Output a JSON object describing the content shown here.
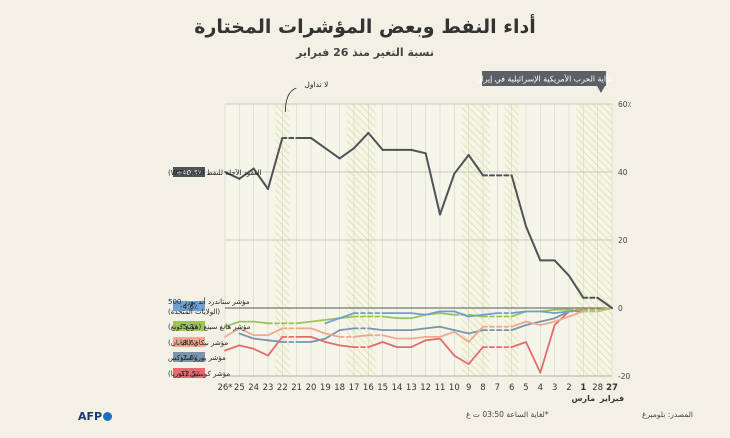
{
  "title": "أداء النفط وبعض المؤشرات المختارة",
  "subtitle": "نسبة التغير منذ 26 فبراير",
  "source": "المصدر: بلومبرغ",
  "footnote": "*لغاية الساعة 03:50 ت غ",
  "logo": "AFP",
  "colors": {
    "oil": "#4f5358",
    "sp500": "#6fa0d2",
    "hangseng": "#9dc45a",
    "nikkei": "#f0a990",
    "eurostoxx": "#7a95ad",
    "kospi": "#e56b6e",
    "hatch": "#e3e6c6"
  },
  "chart_data": {
    "type": "line",
    "title": "أداء النفط وبعض المؤشرات المختارة",
    "subtitle": "نسبة التغير منذ 26 فبراير",
    "x_tick_labels": [
      "26*",
      "25",
      "24",
      "23",
      "22",
      "21",
      "20",
      "19",
      "18",
      "17",
      "16",
      "15",
      "14",
      "13",
      "12",
      "11",
      "10",
      "9",
      "8",
      "7",
      "6",
      "5",
      "4",
      "3",
      "2",
      "1",
      "28",
      "27"
    ],
    "x_month_labels": [
      {
        "index": 25,
        "label": "مارس"
      },
      {
        "index": 27,
        "label": "فبراير"
      }
    ],
    "bold_ticks": [
      25,
      27
    ],
    "ylim": [
      -20,
      60
    ],
    "y_ticks": [
      {
        "value": 60,
        "label": "60٪"
      },
      {
        "value": 40,
        "label": "40"
      },
      {
        "value": 20,
        "label": "20"
      },
      {
        "value": 0,
        "label": "0"
      },
      {
        "value": -20,
        "label": "-20"
      }
    ],
    "grid": true,
    "hatched_days": [
      4,
      9,
      10,
      17,
      18,
      20,
      25,
      26,
      27
    ],
    "annotations": [
      {
        "label": "بداية الحرب الأمريكية الإسرائيلية في إيران",
        "x_index": 27
      },
      {
        "label": "لا تداول",
        "x_index": 4
      }
    ],
    "series": [
      {
        "key": "oil",
        "name": "العقود الآجلة للنفط الخام (WTI)",
        "badge": "+40.5٪",
        "values": [
          40,
          38,
          41,
          35,
          50,
          50,
          50,
          47,
          44,
          47,
          51.5,
          46.5,
          46.5,
          46.5,
          45.5,
          27.5,
          39.5,
          45,
          39,
          39,
          39,
          24,
          14,
          14,
          9.5,
          3,
          3,
          0
        ]
      },
      {
        "key": "sp500",
        "name": "مؤشر ستاندرد أند بورز 500 (الولايات المتحدة)",
        "badge": "-4.6٪",
        "values": [
          null,
          null,
          null,
          null,
          null,
          null,
          null,
          -4.5,
          -3,
          -1.5,
          -1.5,
          -1.5,
          -1.5,
          -1.5,
          -2,
          -1,
          -1,
          -2.5,
          -2,
          -1.5,
          -1.5,
          -1,
          -1,
          -1.5,
          -1,
          null,
          null,
          0
        ]
      },
      {
        "key": "hangseng",
        "name": "مؤشر هانغ سينغ (هونغ كونغ)",
        "badge": "-5.3٪",
        "values": [
          -5.5,
          -4,
          -4,
          -4.5,
          -4.5,
          -4.5,
          -4,
          -3.5,
          -3,
          -2.5,
          -2.5,
          -2.5,
          -3,
          -3,
          -2,
          -1.5,
          -2,
          -2,
          -2.5,
          -2.5,
          -2.5,
          -1,
          -1,
          -0.5,
          -0.5,
          -0.5,
          -0.5,
          0
        ]
      },
      {
        "key": "nikkei",
        "name": "مؤشر نيكاي (اليابان)",
        "badge": "-8.6٪",
        "values": [
          -8.5,
          -6,
          -8,
          -8,
          -6,
          -6,
          -6,
          -7.5,
          -8.5,
          -8.5,
          -8,
          -8,
          -9,
          -9,
          -8.5,
          -8.5,
          -7,
          -10,
          -5.5,
          -5.5,
          -5.5,
          -4,
          -5,
          -4,
          -2.5,
          -1,
          -1,
          0
        ]
      },
      {
        "key": "eurostoxx",
        "name": "مؤشر يورو ستوكس",
        "badge": "-7.6٪",
        "values": [
          null,
          -7.5,
          -9,
          -9.5,
          -10,
          -10,
          -10,
          -9,
          -6.5,
          -6,
          -6,
          -6.5,
          -6.5,
          -6.5,
          -6,
          -5.5,
          -6.5,
          -7.5,
          -6.5,
          -6.5,
          -6.5,
          -5,
          -4,
          -3,
          -1,
          -1,
          -1,
          0
        ]
      },
      {
        "key": "kospi",
        "name": "مؤشر كوسبي (كوريا)",
        "badge": "-12.5٪",
        "values": [
          -12.5,
          -11,
          -12,
          -14,
          -8.5,
          -8.5,
          -8.5,
          -10,
          -11,
          -11.5,
          -11.5,
          -10,
          -11.5,
          -11.5,
          -9.5,
          -9,
          -14,
          -16.5,
          -11.5,
          -11.5,
          -11.5,
          -10,
          -19,
          -5,
          -1,
          -0.5,
          -0.5,
          0
        ]
      }
    ]
  }
}
